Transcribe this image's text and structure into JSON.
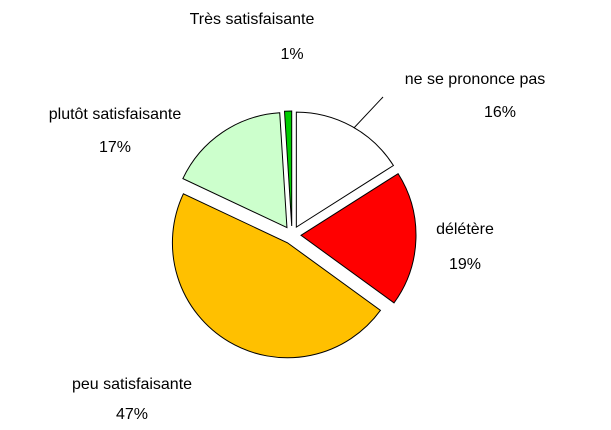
{
  "chart_data": {
    "type": "pie",
    "categories": [
      "ne se prononce pas",
      "délétère",
      "peu satisfaisante",
      "plutôt satisfaisante",
      "Très satisfaisante"
    ],
    "values": [
      16,
      19,
      47,
      17,
      1
    ],
    "value_labels": [
      "16%",
      "19%",
      "47%",
      "17%",
      "1%"
    ],
    "colors": [
      "#ffffff",
      "#ff0000",
      "#ffc000",
      "#ccffcc",
      "#00cc00"
    ]
  }
}
